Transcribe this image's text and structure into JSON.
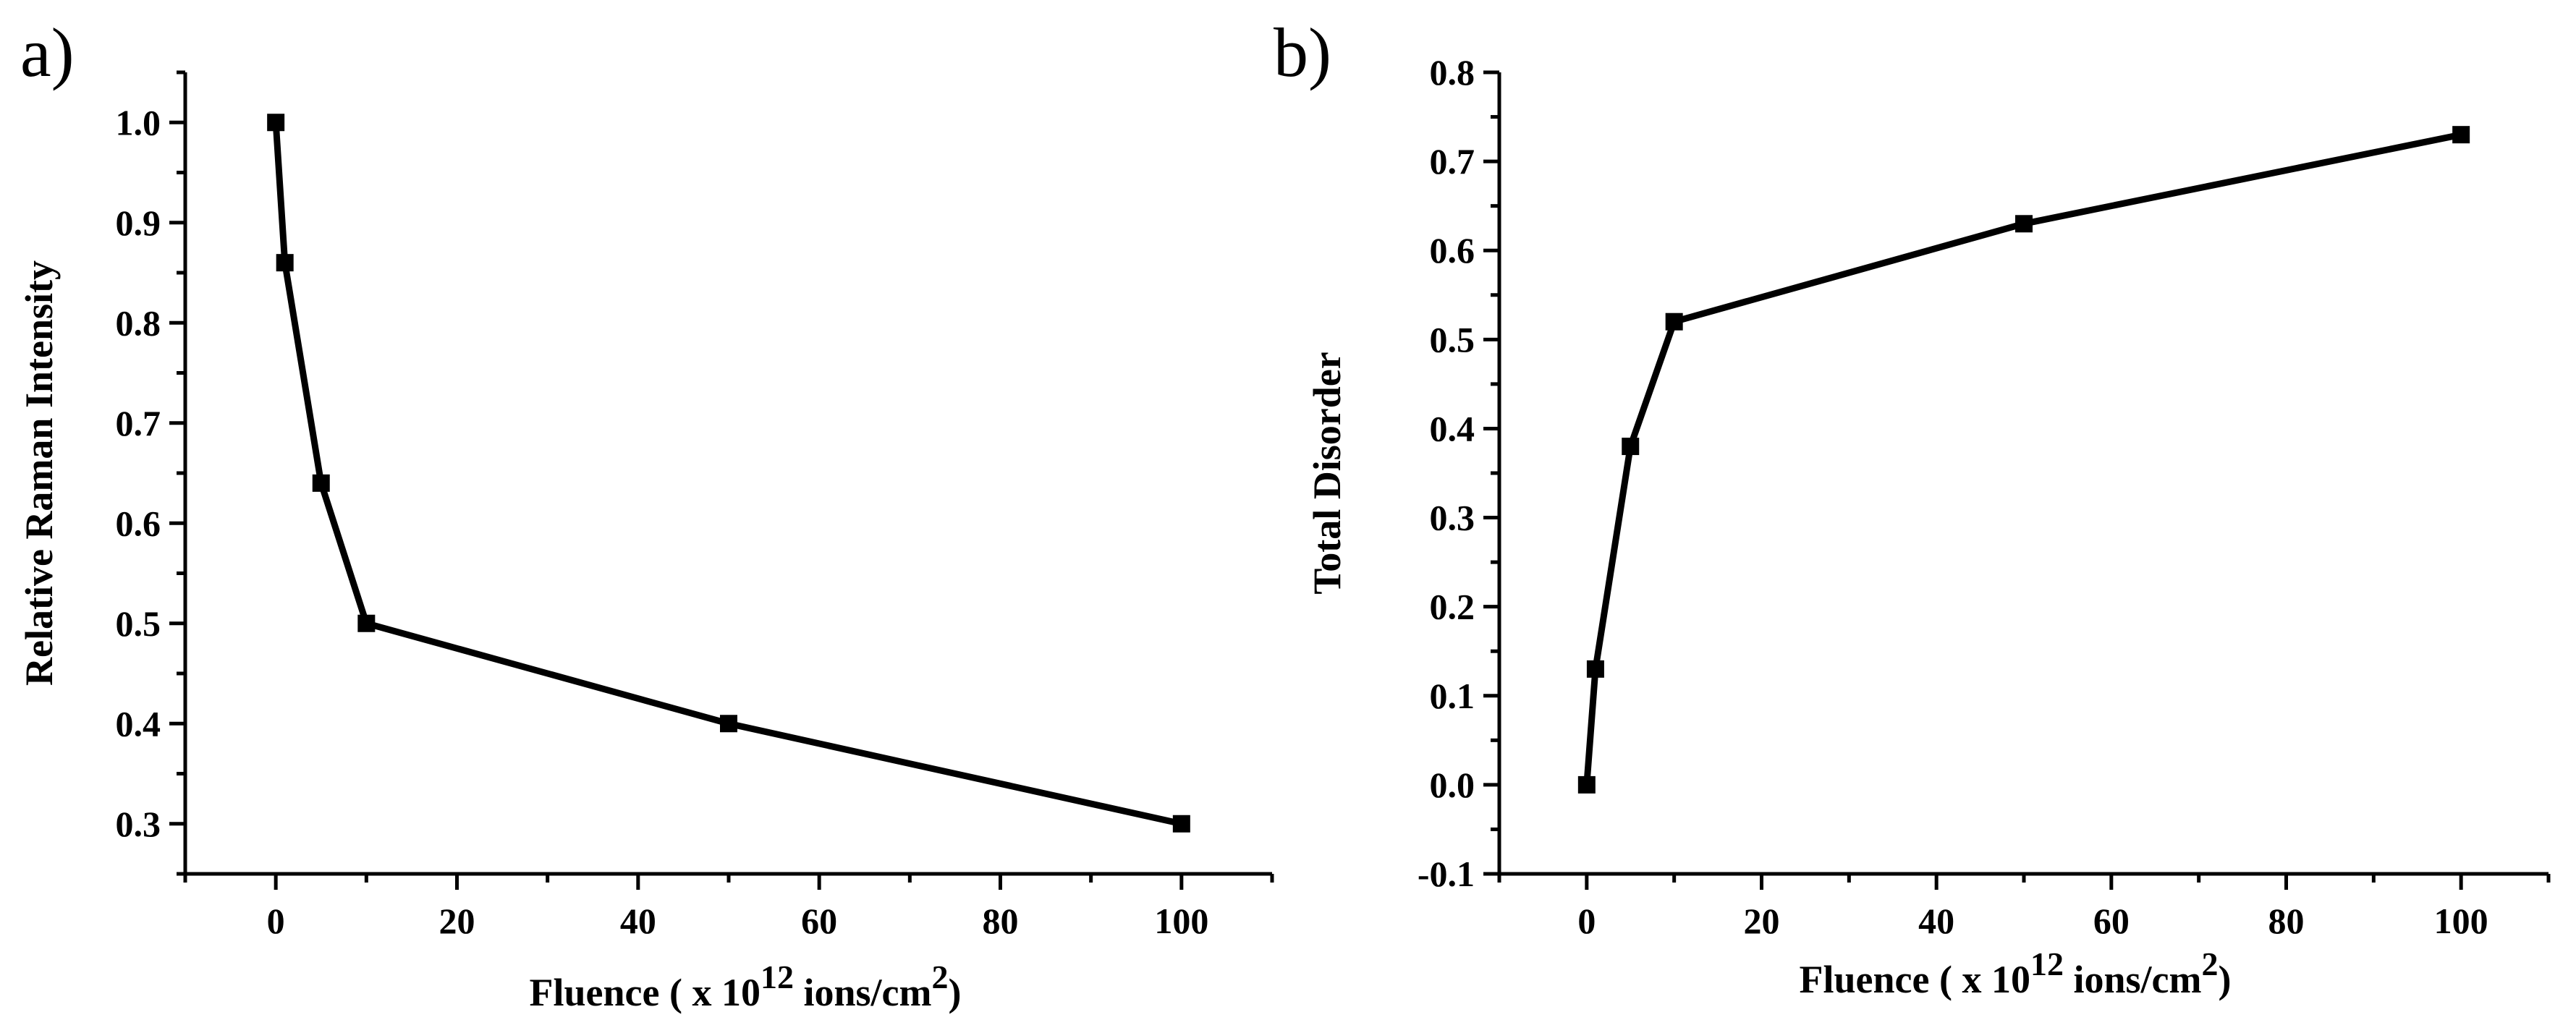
{
  "chart_data": [
    {
      "type": "line",
      "panel_label": "a)",
      "title": "",
      "xlabel": "Fluence ( x 10",
      "xlabel_exp": "12",
      "xlabel_unit": " ions/cm",
      "xlabel_unit_exp": "2",
      "xlabel_close": ")",
      "ylabel": "Relative Raman Intensity",
      "xlim": [
        -10,
        110
      ],
      "ylim": [
        0.25,
        1.05
      ],
      "xticks": [
        0,
        20,
        40,
        60,
        80,
        100
      ],
      "xtick_labels": [
        "0",
        "20",
        "40",
        "60",
        "80",
        "100"
      ],
      "yticks": [
        0.3,
        0.4,
        0.5,
        0.6,
        0.7,
        0.8,
        0.9,
        1.0
      ],
      "ytick_labels": [
        "0.3",
        "0.4",
        "0.5",
        "0.6",
        "0.7",
        "0.8",
        "0.9",
        "1.0"
      ],
      "grid": false,
      "marker": "square",
      "series": [
        {
          "name": "Relative Raman Intensity",
          "x": [
            0,
            1,
            5,
            10,
            50,
            100
          ],
          "y": [
            1.0,
            0.86,
            0.64,
            0.5,
            0.4,
            0.3
          ]
        }
      ]
    },
    {
      "type": "line",
      "panel_label": "b)",
      "title": "",
      "xlabel": "Fluence ( x 10",
      "xlabel_exp": "12",
      "xlabel_unit": " ions/cm",
      "xlabel_unit_exp": "2",
      "xlabel_close": ")",
      "ylabel": "Total Disorder",
      "xlim": [
        -10,
        110
      ],
      "ylim": [
        -0.1,
        0.8
      ],
      "xticks": [
        0,
        20,
        40,
        60,
        80,
        100
      ],
      "xtick_labels": [
        "0",
        "20",
        "40",
        "60",
        "80",
        "100"
      ],
      "yticks": [
        -0.1,
        0.0,
        0.1,
        0.2,
        0.3,
        0.4,
        0.5,
        0.6,
        0.7,
        0.8
      ],
      "ytick_labels": [
        "-0.1",
        "0.0",
        "0.1",
        "0.2",
        "0.3",
        "0.4",
        "0.5",
        "0.6",
        "0.7",
        "0.8"
      ],
      "grid": false,
      "marker": "square",
      "series": [
        {
          "name": "Total Disorder",
          "x": [
            0,
            1,
            5,
            10,
            50,
            100
          ],
          "y": [
            0.0,
            0.13,
            0.38,
            0.52,
            0.63,
            0.73
          ]
        }
      ]
    }
  ]
}
